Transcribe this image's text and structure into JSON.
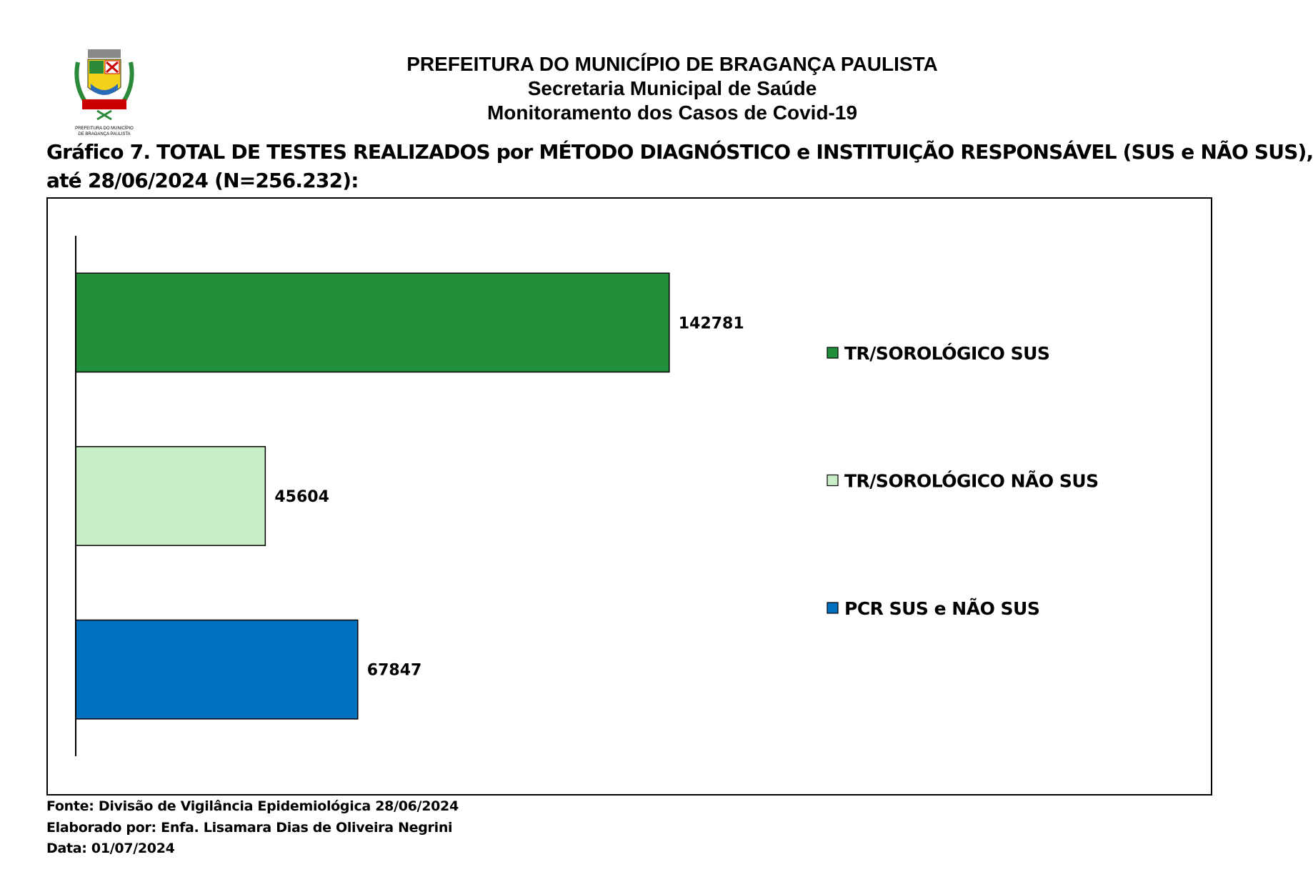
{
  "header": {
    "line1": "PREFEITURA DO MUNICÍPIO DE BRAGANÇA PAULISTA",
    "line2": "Secretaria Municipal de Saúde",
    "line3": "Monitoramento dos Casos de Covid-19",
    "logo_text": "PREFEITURA DO MUNICÍPIO DE BRAGANÇA PAULISTA"
  },
  "chart_data": {
    "type": "bar",
    "orientation": "horizontal",
    "title_line1": "Gráfico 7. TOTAL DE TESTES REALIZADOS por MÉTODO DIAGNÓSTICO e INSTITUIÇÃO RESPONSÁVEL (SUS e NÃO SUS),",
    "title_line2": "até 28/06/2024 (N=256.232):",
    "categories": [
      "TR/SOROLÓGICO SUS",
      "TR/SOROLÓGICO NÃO SUS",
      "PCR SUS e NÃO SUS"
    ],
    "values": [
      142781,
      45604,
      67847
    ],
    "colors": [
      "#22903a",
      "#c8eec8",
      "#0070c0"
    ],
    "xlim": [
      0,
      160000
    ],
    "grid": false,
    "legend_placement": "right"
  },
  "footer": {
    "source": "Fonte: Divisão de Vigilância Epidemiológica 28/06/2024",
    "author": "Elaborado por: Enfa. Lisamara Dias de Oliveira Negrini",
    "date": "Data: 01/07/2024"
  }
}
